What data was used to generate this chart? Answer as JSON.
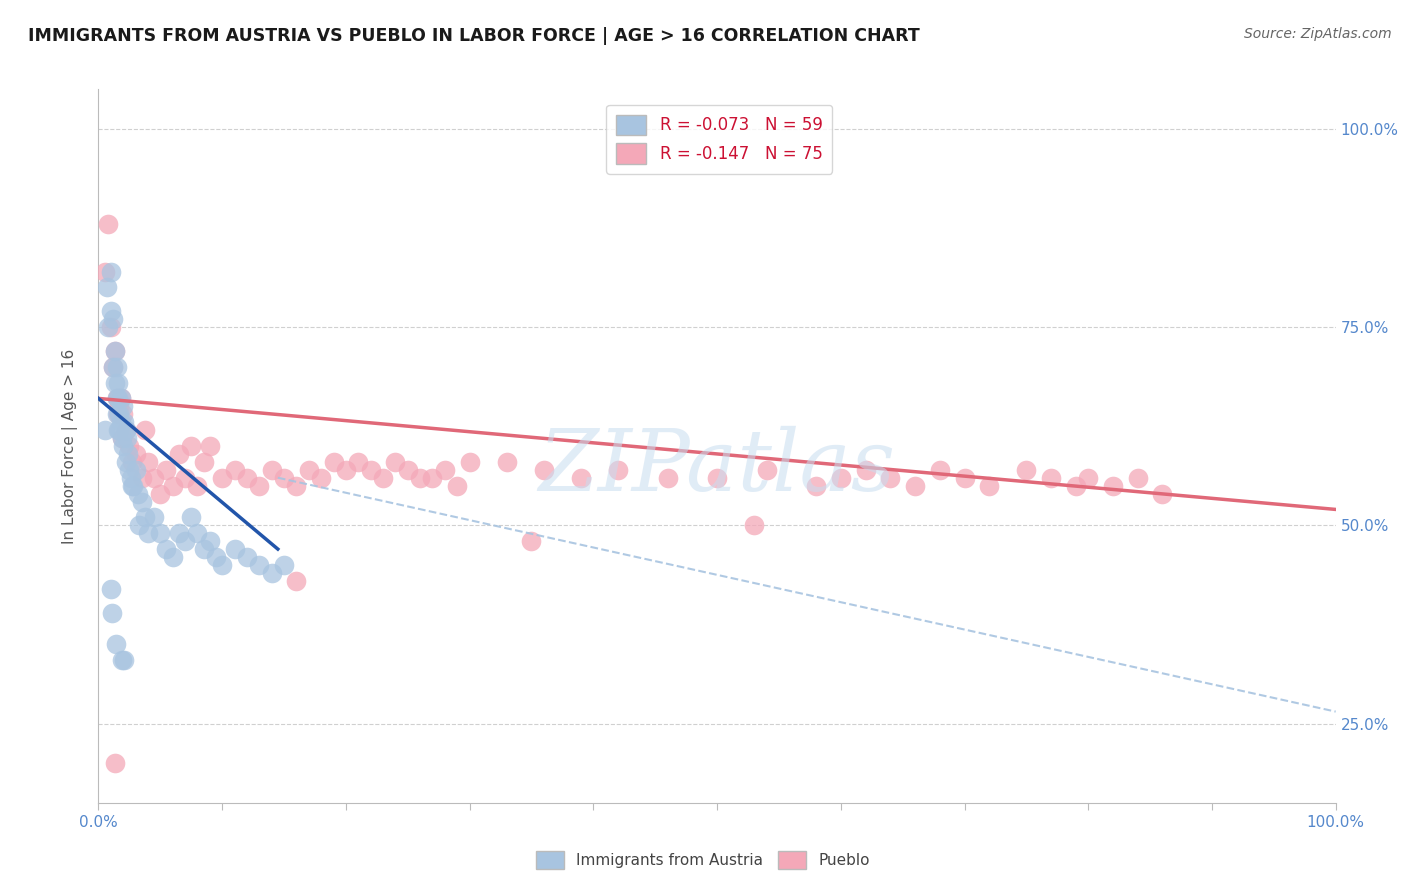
{
  "title": "IMMIGRANTS FROM AUSTRIA VS PUEBLO IN LABOR FORCE | AGE > 16 CORRELATION CHART",
  "source_text": "Source: ZipAtlas.com",
  "ylabel": "In Labor Force | Age > 16",
  "xlim": [
    0.0,
    1.0
  ],
  "ylim": [
    0.15,
    1.05
  ],
  "legend1_label": "R = -0.073   N = 59",
  "legend2_label": "R = -0.147   N = 75",
  "austria_color": "#a8c4e0",
  "pueblo_color": "#f4a8b8",
  "austria_line_color": "#2255aa",
  "pueblo_line_color": "#e06878",
  "dashed_line_color": "#a8c4e0",
  "austria_scatter_x": [
    0.005,
    0.007,
    0.008,
    0.01,
    0.01,
    0.012,
    0.012,
    0.013,
    0.013,
    0.015,
    0.015,
    0.015,
    0.016,
    0.016,
    0.016,
    0.017,
    0.017,
    0.018,
    0.018,
    0.019,
    0.02,
    0.02,
    0.021,
    0.022,
    0.022,
    0.023,
    0.024,
    0.025,
    0.026,
    0.028,
    0.03,
    0.032,
    0.035,
    0.038,
    0.04,
    0.045,
    0.05,
    0.055,
    0.06,
    0.065,
    0.07,
    0.075,
    0.08,
    0.085,
    0.09,
    0.095,
    0.1,
    0.11,
    0.12,
    0.13,
    0.14,
    0.15,
    0.01,
    0.011,
    0.014,
    0.019,
    0.021,
    0.027,
    0.033
  ],
  "austria_scatter_y": [
    0.62,
    0.8,
    0.75,
    0.82,
    0.77,
    0.7,
    0.76,
    0.68,
    0.72,
    0.66,
    0.64,
    0.7,
    0.62,
    0.66,
    0.68,
    0.64,
    0.62,
    0.66,
    0.63,
    0.61,
    0.65,
    0.6,
    0.63,
    0.62,
    0.58,
    0.61,
    0.59,
    0.57,
    0.56,
    0.55,
    0.57,
    0.54,
    0.53,
    0.51,
    0.49,
    0.51,
    0.49,
    0.47,
    0.46,
    0.49,
    0.48,
    0.51,
    0.49,
    0.47,
    0.48,
    0.46,
    0.45,
    0.47,
    0.46,
    0.45,
    0.44,
    0.45,
    0.42,
    0.39,
    0.35,
    0.33,
    0.33,
    0.55,
    0.5
  ],
  "pueblo_scatter_x": [
    0.005,
    0.008,
    0.01,
    0.012,
    0.013,
    0.015,
    0.016,
    0.017,
    0.018,
    0.019,
    0.02,
    0.022,
    0.025,
    0.027,
    0.03,
    0.035,
    0.038,
    0.04,
    0.045,
    0.05,
    0.055,
    0.06,
    0.065,
    0.07,
    0.075,
    0.08,
    0.085,
    0.09,
    0.1,
    0.11,
    0.12,
    0.13,
    0.14,
    0.15,
    0.16,
    0.17,
    0.18,
    0.19,
    0.2,
    0.21,
    0.22,
    0.23,
    0.24,
    0.25,
    0.26,
    0.27,
    0.28,
    0.29,
    0.3,
    0.33,
    0.36,
    0.39,
    0.42,
    0.46,
    0.5,
    0.54,
    0.58,
    0.6,
    0.62,
    0.64,
    0.66,
    0.68,
    0.7,
    0.72,
    0.75,
    0.77,
    0.79,
    0.8,
    0.82,
    0.84,
    0.86,
    0.013,
    0.16,
    0.35,
    0.53
  ],
  "pueblo_scatter_y": [
    0.82,
    0.88,
    0.75,
    0.7,
    0.72,
    0.66,
    0.64,
    0.65,
    0.66,
    0.61,
    0.64,
    0.62,
    0.6,
    0.58,
    0.59,
    0.56,
    0.62,
    0.58,
    0.56,
    0.54,
    0.57,
    0.55,
    0.59,
    0.56,
    0.6,
    0.55,
    0.58,
    0.6,
    0.56,
    0.57,
    0.56,
    0.55,
    0.57,
    0.56,
    0.55,
    0.57,
    0.56,
    0.58,
    0.57,
    0.58,
    0.57,
    0.56,
    0.58,
    0.57,
    0.56,
    0.56,
    0.57,
    0.55,
    0.58,
    0.58,
    0.57,
    0.56,
    0.57,
    0.56,
    0.56,
    0.57,
    0.55,
    0.56,
    0.57,
    0.56,
    0.55,
    0.57,
    0.56,
    0.55,
    0.57,
    0.56,
    0.55,
    0.56,
    0.55,
    0.56,
    0.54,
    0.2,
    0.43,
    0.48,
    0.5
  ],
  "austria_trend_x": [
    0.0,
    0.145
  ],
  "austria_trend_y": [
    0.66,
    0.47
  ],
  "pueblo_trend_x": [
    0.0,
    1.0
  ],
  "pueblo_trend_y": [
    0.66,
    0.52
  ],
  "dashed_line_x": [
    0.145,
    1.0
  ],
  "dashed_line_y": [
    0.56,
    0.265
  ],
  "watermark": "ZIPatlas",
  "title_color": "#1a1a1a",
  "source_color": "#666666",
  "background_color": "#ffffff",
  "grid_color": "#d0d0d0",
  "right_tick_color": "#5588cc",
  "bottom_tick_color": "#5588cc"
}
